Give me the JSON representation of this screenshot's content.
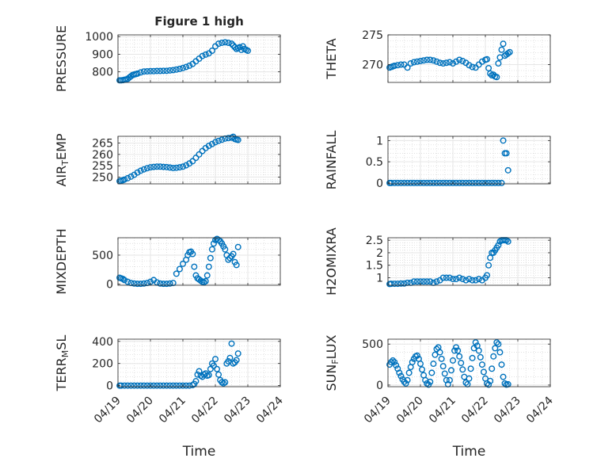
{
  "figure": {
    "title": "Figure 1 high",
    "marker_color": "#0072bd",
    "grid_color": "#e6e6e6"
  },
  "chart_data": [
    {
      "type": "scatter",
      "marker": "circle",
      "title": "Figure 1 high",
      "ylabel": "PRESSURE",
      "xlabel": "",
      "xlim": [
        0,
        5
      ],
      "ylim": [
        740,
        1010
      ],
      "xticks": [
        0,
        1,
        2,
        3,
        4,
        5
      ],
      "xticklabels": [
        "04/19",
        "04/20",
        "04/21",
        "04/22",
        "04/23",
        "04/24"
      ],
      "yticks": [
        800,
        900,
        1000
      ],
      "yticklabels": [
        "800",
        "900",
        "1000"
      ],
      "series": [
        {
          "x": [
            0.05,
            0.1,
            0.15,
            0.2,
            0.25,
            0.3,
            0.35,
            0.4,
            0.45,
            0.5,
            0.55,
            0.6,
            0.7,
            0.8,
            0.9,
            1.0,
            1.1,
            1.2,
            1.3,
            1.4,
            1.5,
            1.6,
            1.7,
            1.8,
            1.9,
            2.0,
            2.1,
            2.2,
            2.3,
            2.4,
            2.5,
            2.6,
            2.7,
            2.8,
            2.9,
            3.0,
            3.1,
            3.2,
            3.3,
            3.4,
            3.5,
            3.55,
            3.6,
            3.65,
            3.7,
            3.75,
            3.8,
            3.85,
            3.9,
            3.95,
            4.0
          ],
          "y": [
            752,
            752,
            753,
            755,
            757,
            760,
            768,
            775,
            782,
            785,
            787,
            790,
            797,
            802,
            803,
            804,
            804,
            805,
            805,
            806,
            806,
            808,
            810,
            813,
            817,
            822,
            828,
            835,
            845,
            860,
            875,
            890,
            898,
            905,
            920,
            945,
            960,
            965,
            968,
            965,
            960,
            950,
            940,
            930,
            935,
            940,
            925,
            945,
            930,
            925,
            920
          ]
        }
      ]
    },
    {
      "type": "scatter",
      "marker": "circle",
      "ylabel": "THETA",
      "xlabel": "",
      "xlim": [
        0,
        5
      ],
      "ylim": [
        267,
        275
      ],
      "xticks": [
        0,
        1,
        2,
        3,
        4,
        5
      ],
      "xticklabels": [
        "04/19",
        "04/20",
        "04/21",
        "04/22",
        "04/23",
        "04/24"
      ],
      "yticks": [
        270,
        275
      ],
      "yticklabels": [
        "270",
        "275"
      ],
      "series": [
        {
          "x": [
            0.05,
            0.1,
            0.15,
            0.2,
            0.3,
            0.4,
            0.5,
            0.6,
            0.7,
            0.8,
            0.9,
            1.0,
            1.1,
            1.2,
            1.3,
            1.4,
            1.5,
            1.6,
            1.7,
            1.8,
            1.9,
            2.0,
            2.1,
            2.2,
            2.3,
            2.4,
            2.5,
            2.6,
            2.7,
            2.8,
            2.9,
            3.0,
            3.05,
            3.1,
            3.15,
            3.2,
            3.25,
            3.3,
            3.35,
            3.4,
            3.45,
            3.5,
            3.55,
            3.6,
            3.65,
            3.7,
            3.75
          ],
          "y": [
            269.5,
            269.6,
            269.7,
            269.8,
            269.9,
            270.0,
            270.0,
            269.5,
            270.2,
            270.4,
            270.5,
            270.6,
            270.7,
            270.8,
            270.8,
            270.7,
            270.5,
            270.3,
            270.2,
            270.3,
            270.4,
            270.2,
            270.5,
            270.8,
            270.6,
            270.3,
            269.9,
            269.6,
            269.5,
            270.0,
            270.5,
            270.8,
            270.9,
            269.4,
            268.5,
            268.2,
            268.3,
            268.0,
            267.9,
            270.2,
            271.2,
            272.5,
            273.5,
            271.5,
            271.7,
            271.9,
            272.1
          ]
        }
      ]
    },
    {
      "type": "scatter",
      "marker": "circle",
      "ylabel": "AIR_TEMP",
      "xlabel": "",
      "xlim": [
        0,
        5
      ],
      "ylim": [
        247,
        268
      ],
      "xticks": [
        0,
        1,
        2,
        3,
        4,
        5
      ],
      "xticklabels": [
        "04/19",
        "04/20",
        "04/21",
        "04/22",
        "04/23",
        "04/24"
      ],
      "yticks": [
        250,
        255,
        260,
        265
      ],
      "yticklabels": [
        "250",
        "255",
        "260",
        "265"
      ],
      "series": [
        {
          "x": [
            0.05,
            0.1,
            0.15,
            0.2,
            0.3,
            0.4,
            0.5,
            0.6,
            0.7,
            0.8,
            0.9,
            1.0,
            1.1,
            1.2,
            1.3,
            1.4,
            1.5,
            1.6,
            1.7,
            1.8,
            1.9,
            2.0,
            2.1,
            2.2,
            2.3,
            2.4,
            2.5,
            2.6,
            2.7,
            2.8,
            2.9,
            3.0,
            3.1,
            3.2,
            3.3,
            3.4,
            3.5,
            3.55,
            3.6,
            3.65,
            3.7
          ],
          "y": [
            248.2,
            248.4,
            248.6,
            248.9,
            249.5,
            250.2,
            251.0,
            252.0,
            252.8,
            253.4,
            253.9,
            254.3,
            254.5,
            254.6,
            254.6,
            254.5,
            254.4,
            254.2,
            254.0,
            254.1,
            254.3,
            254.6,
            255.2,
            256.0,
            257.0,
            258.5,
            260.0,
            261.5,
            262.8,
            263.8,
            264.6,
            265.4,
            266.0,
            266.5,
            267.0,
            267.2,
            267.4,
            267.8,
            266.8,
            266.6,
            266.4
          ]
        }
      ]
    },
    {
      "type": "scatter",
      "marker": "circle",
      "ylabel": "RAINFALL",
      "xlabel": "",
      "xlim": [
        0,
        5
      ],
      "ylim": [
        -0.02,
        1.1
      ],
      "xticks": [
        0,
        1,
        2,
        3,
        4,
        5
      ],
      "xticklabels": [
        "04/19",
        "04/20",
        "04/21",
        "04/22",
        "04/23",
        "04/24"
      ],
      "yticks": [
        0,
        0.5,
        1
      ],
      "yticklabels": [
        "0",
        "0.5",
        "1"
      ],
      "series": [
        {
          "x": [
            0.05,
            0.1,
            0.2,
            0.3,
            0.4,
            0.5,
            0.6,
            0.7,
            0.8,
            0.9,
            1.0,
            1.1,
            1.2,
            1.3,
            1.4,
            1.5,
            1.6,
            1.7,
            1.8,
            1.9,
            2.0,
            2.1,
            2.2,
            2.3,
            2.4,
            2.5,
            2.6,
            2.7,
            2.8,
            2.9,
            3.0,
            3.1,
            3.2,
            3.3,
            3.4,
            3.5,
            3.55,
            3.6,
            3.65,
            3.7
          ],
          "y": [
            0,
            0,
            0,
            0,
            0,
            0,
            0,
            0,
            0,
            0,
            0,
            0,
            0,
            0,
            0,
            0,
            0,
            0,
            0,
            0,
            0,
            0,
            0,
            0,
            0,
            0,
            0,
            0,
            0,
            0,
            0,
            0,
            0,
            0,
            0,
            0,
            1.0,
            0.7,
            0.7,
            0.3
          ]
        }
      ]
    },
    {
      "type": "scatter",
      "marker": "circle",
      "ylabel": "MIXDEPTH",
      "xlabel": "",
      "xlim": [
        0,
        5
      ],
      "ylim": [
        -20,
        800
      ],
      "xticks": [
        0,
        1,
        2,
        3,
        4,
        5
      ],
      "xticklabels": [
        "04/19",
        "04/20",
        "04/21",
        "04/22",
        "04/23",
        "04/24"
      ],
      "yticks": [
        0,
        500
      ],
      "yticklabels": [
        "0",
        "500"
      ],
      "series": [
        {
          "x": [
            0.05,
            0.1,
            0.15,
            0.2,
            0.3,
            0.4,
            0.5,
            0.6,
            0.7,
            0.8,
            0.9,
            1.0,
            1.1,
            1.2,
            1.3,
            1.4,
            1.5,
            1.6,
            1.7,
            1.8,
            1.9,
            2.0,
            2.1,
            2.15,
            2.2,
            2.25,
            2.3,
            2.35,
            2.4,
            2.45,
            2.5,
            2.55,
            2.6,
            2.65,
            2.7,
            2.75,
            2.8,
            2.85,
            2.9,
            2.95,
            3.0,
            3.05,
            3.1,
            3.15,
            3.2,
            3.25,
            3.3,
            3.35,
            3.4,
            3.45,
            3.5,
            3.55,
            3.6,
            3.65,
            3.7
          ],
          "y": [
            110,
            100,
            90,
            70,
            40,
            20,
            10,
            5,
            5,
            10,
            20,
            40,
            70,
            30,
            10,
            5,
            5,
            10,
            20,
            180,
            260,
            350,
            420,
            500,
            550,
            560,
            520,
            300,
            150,
            100,
            80,
            60,
            40,
            30,
            50,
            150,
            300,
            450,
            600,
            700,
            760,
            780,
            760,
            740,
            700,
            650,
            600,
            500,
            420,
            450,
            480,
            520,
            380,
            330,
            640
          ]
        }
      ]
    },
    {
      "type": "scatter",
      "marker": "circle",
      "ylabel": "H2OMIXRA",
      "xlabel": "",
      "xlim": [
        0,
        5
      ],
      "ylim": [
        0.7,
        2.6
      ],
      "xticks": [
        0,
        1,
        2,
        3,
        4,
        5
      ],
      "xticklabels": [
        "04/19",
        "04/20",
        "04/21",
        "04/22",
        "04/23",
        "04/24"
      ],
      "yticks": [
        1,
        1.5,
        2,
        2.5
      ],
      "yticklabels": [
        "1",
        "1.5",
        "2",
        "2.5"
      ],
      "series": [
        {
          "x": [
            0.05,
            0.1,
            0.2,
            0.3,
            0.4,
            0.5,
            0.6,
            0.7,
            0.8,
            0.9,
            1.0,
            1.1,
            1.2,
            1.3,
            1.4,
            1.5,
            1.6,
            1.7,
            1.8,
            1.9,
            2.0,
            2.1,
            2.2,
            2.3,
            2.4,
            2.5,
            2.6,
            2.7,
            2.8,
            2.9,
            3.0,
            3.05,
            3.1,
            3.15,
            3.2,
            3.25,
            3.3,
            3.35,
            3.4,
            3.45,
            3.5,
            3.55,
            3.6,
            3.65,
            3.7
          ],
          "y": [
            0.75,
            0.76,
            0.76,
            0.76,
            0.77,
            0.77,
            0.8,
            0.8,
            0.85,
            0.85,
            0.85,
            0.85,
            0.85,
            0.85,
            0.8,
            0.85,
            0.9,
            1.0,
            1.0,
            1.0,
            0.95,
            0.95,
            1.0,
            0.95,
            0.9,
            0.95,
            0.9,
            0.9,
            0.95,
            0.9,
            1.0,
            1.1,
            1.5,
            1.8,
            2.0,
            2.0,
            2.1,
            2.2,
            2.3,
            2.45,
            2.5,
            2.5,
            2.5,
            2.5,
            2.45
          ]
        }
      ]
    },
    {
      "type": "scatter",
      "marker": "circle",
      "ylabel": "TERR_MSL",
      "xlabel": "Time",
      "xlim": [
        0,
        5
      ],
      "ylim": [
        -10,
        420
      ],
      "xticks": [
        0,
        1,
        2,
        3,
        4,
        5
      ],
      "xticklabels": [
        "04/19",
        "04/20",
        "04/21",
        "04/22",
        "04/23",
        "04/24"
      ],
      "yticks": [
        0,
        200,
        400
      ],
      "yticklabels": [
        "0",
        "200",
        "400"
      ],
      "series": [
        {
          "x": [
            0.05,
            0.1,
            0.2,
            0.3,
            0.4,
            0.5,
            0.6,
            0.7,
            0.8,
            0.9,
            1.0,
            1.1,
            1.2,
            1.3,
            1.4,
            1.5,
            1.6,
            1.7,
            1.8,
            1.9,
            2.0,
            2.1,
            2.2,
            2.3,
            2.35,
            2.4,
            2.45,
            2.5,
            2.55,
            2.6,
            2.65,
            2.7,
            2.75,
            2.8,
            2.85,
            2.9,
            2.95,
            3.0,
            3.05,
            3.1,
            3.15,
            3.2,
            3.25,
            3.3,
            3.35,
            3.4,
            3.45,
            3.5,
            3.55,
            3.6,
            3.65,
            3.7
          ],
          "y": [
            0,
            0,
            0,
            0,
            0,
            0,
            0,
            0,
            0,
            0,
            0,
            0,
            0,
            0,
            0,
            0,
            0,
            0,
            0,
            0,
            0,
            0,
            0,
            5,
            15,
            40,
            100,
            130,
            90,
            80,
            100,
            110,
            90,
            95,
            150,
            200,
            180,
            240,
            150,
            100,
            50,
            30,
            20,
            30,
            200,
            220,
            250,
            380,
            200,
            210,
            230,
            290
          ]
        }
      ]
    },
    {
      "type": "scatter",
      "marker": "circle",
      "ylabel": "SUN_FLUX",
      "xlabel": "Time",
      "xlim": [
        0,
        5
      ],
      "ylim": [
        -20,
        560
      ],
      "xticks": [
        0,
        1,
        2,
        3,
        4,
        5
      ],
      "xticklabels": [
        "04/19",
        "04/20",
        "04/21",
        "04/22",
        "04/23",
        "04/24"
      ],
      "yticks": [
        0,
        500
      ],
      "yticklabels": [
        "0",
        "500"
      ],
      "series": [
        {
          "x": [
            0.05,
            0.1,
            0.15,
            0.2,
            0.25,
            0.3,
            0.35,
            0.4,
            0.45,
            0.5,
            0.55,
            0.6,
            0.65,
            0.7,
            0.75,
            0.8,
            0.85,
            0.9,
            0.95,
            1.0,
            1.05,
            1.1,
            1.15,
            1.2,
            1.25,
            1.3,
            1.35,
            1.4,
            1.45,
            1.5,
            1.55,
            1.6,
            1.65,
            1.7,
            1.75,
            1.8,
            1.85,
            1.9,
            1.95,
            2.0,
            2.05,
            2.1,
            2.15,
            2.2,
            2.25,
            2.3,
            2.35,
            2.4,
            2.45,
            2.5,
            2.55,
            2.6,
            2.65,
            2.7,
            2.75,
            2.8,
            2.85,
            2.9,
            2.95,
            3.0,
            3.05,
            3.1,
            3.15,
            3.2,
            3.25,
            3.3,
            3.35,
            3.4,
            3.45,
            3.5,
            3.55,
            3.6,
            3.65,
            3.7
          ],
          "y": [
            250,
            280,
            300,
            280,
            240,
            200,
            150,
            110,
            70,
            40,
            20,
            60,
            150,
            220,
            280,
            320,
            350,
            360,
            320,
            260,
            190,
            120,
            60,
            20,
            5,
            40,
            150,
            260,
            370,
            440,
            460,
            400,
            320,
            230,
            140,
            60,
            10,
            60,
            180,
            300,
            420,
            460,
            420,
            350,
            270,
            190,
            100,
            30,
            10,
            80,
            200,
            330,
            450,
            520,
            480,
            420,
            340,
            250,
            160,
            80,
            20,
            5,
            50,
            200,
            350,
            450,
            520,
            500,
            400,
            250,
            100,
            20,
            5,
            10
          ]
        }
      ]
    }
  ]
}
